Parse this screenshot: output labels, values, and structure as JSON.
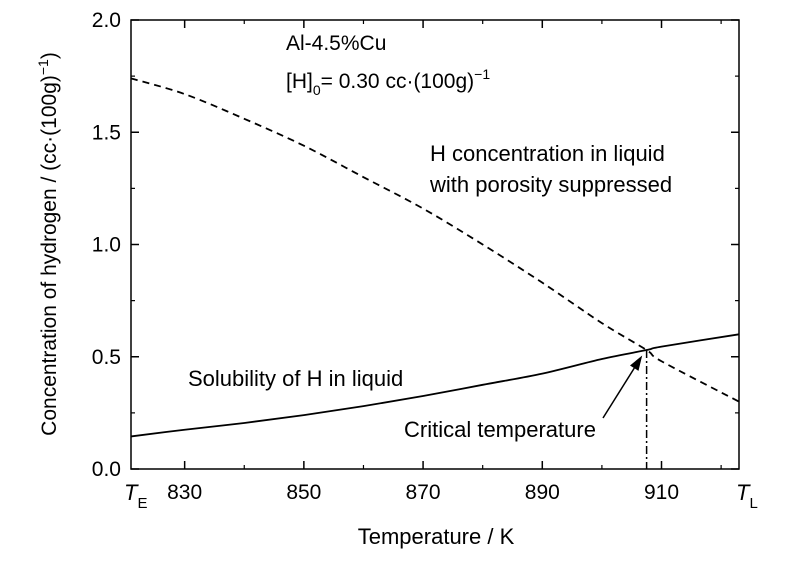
{
  "chart_data": {
    "type": "line",
    "xlabel": "Temperature / K",
    "ylabel": "Concentration of hydrogen / (cc·(100g)",
    "ylabel_sup": "−1",
    "ylabel_close": ")",
    "xlim": [
      821,
      923
    ],
    "ylim": [
      0.0,
      2.0
    ],
    "x_ticks": [
      830,
      850,
      870,
      890,
      910
    ],
    "x_tick_labels": [
      "830",
      "850",
      "870",
      "890",
      "910"
    ],
    "x_end_labels": {
      "left": {
        "main": "T",
        "sub": "E"
      },
      "right": {
        "main": "T",
        "sub": "L"
      }
    },
    "y_ticks": [
      0.0,
      0.5,
      1.0,
      1.5,
      2.0
    ],
    "y_tick_labels": [
      "0.0",
      "0.5",
      "1.0",
      "1.5",
      "2.0"
    ],
    "grid": false,
    "series": [
      {
        "name": "Solubility of H in liquid",
        "style": "solid",
        "x": [
          821,
          830,
          840,
          850,
          860,
          870,
          880,
          890,
          900,
          907.5,
          910,
          923
        ],
        "y": [
          0.145,
          0.175,
          0.205,
          0.24,
          0.28,
          0.325,
          0.375,
          0.425,
          0.49,
          0.53,
          0.545,
          0.6
        ]
      },
      {
        "name": "H concentration in liquid with porosity suppressed",
        "style": "dashed",
        "x": [
          821,
          830,
          840,
          850,
          860,
          870,
          880,
          890,
          900,
          907.5,
          910,
          923
        ],
        "y": [
          1.74,
          1.67,
          1.56,
          1.44,
          1.3,
          1.16,
          1.0,
          0.83,
          0.65,
          0.53,
          0.48,
          0.3
        ]
      }
    ],
    "critical_temperature": 907.5,
    "annotations": {
      "alloy": "Al-4.5%Cu",
      "initial_h_prefix": "[H]",
      "initial_h_sub": "0",
      "initial_h_value": "= 0.30 cc·(100g)",
      "initial_h_sup": "−1",
      "porosity_line1": "H concentration in liquid",
      "porosity_line2": "with porosity suppressed",
      "solubility": "Solubility of H in liquid",
      "critical": "Critical temperature"
    }
  }
}
